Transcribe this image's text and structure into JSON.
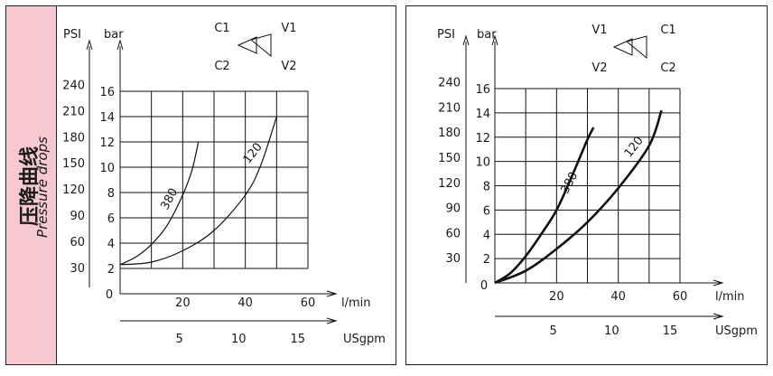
{
  "panel_label": {
    "zh": "压降曲线",
    "en": "Pressure drops"
  },
  "chart_data": [
    {
      "type": "line",
      "ylabel": "bar",
      "y2label": "PSI",
      "xlabel": "l/min",
      "x2label": "USgpm",
      "xlim": [
        0,
        60
      ],
      "ylim": [
        0,
        16
      ],
      "x_ticks": [
        "20",
        "40",
        "60"
      ],
      "x2_ticks": [
        "5",
        "10",
        "15"
      ],
      "y_ticks": [
        "2",
        "4",
        "6",
        "8",
        "10",
        "12",
        "14",
        "16"
      ],
      "y_ticks_origin": "0",
      "psi_ticks": [
        "30",
        "60",
        "90",
        "120",
        "150",
        "180",
        "210",
        "240"
      ],
      "flow_symbol": {
        "left": "C1",
        "right": "V1",
        "left2": "C2",
        "right2": "V2"
      },
      "series": [
        {
          "name": "380",
          "x": [
            0,
            5,
            10,
            15,
            20,
            23,
            25
          ],
          "y": [
            2.3,
            2.9,
            3.9,
            5.4,
            7.8,
            9.8,
            12
          ]
        },
        {
          "name": "120",
          "x": [
            0,
            10,
            20,
            30,
            40,
            45,
            50
          ],
          "y": [
            2.3,
            2.5,
            3.4,
            5.0,
            7.8,
            10.2,
            14
          ]
        }
      ]
    },
    {
      "type": "line",
      "ylabel": "bar",
      "y2label": "PSI",
      "xlabel": "l/min",
      "x2label": "USgpm",
      "xlim": [
        0,
        60
      ],
      "ylim": [
        0,
        16
      ],
      "x_ticks": [
        "20",
        "40",
        "60"
      ],
      "x2_ticks": [
        "5",
        "10",
        "15"
      ],
      "y_ticks": [
        "2",
        "4",
        "6",
        "8",
        "10",
        "12",
        "14",
        "16"
      ],
      "y_ticks_origin": "0",
      "psi_ticks": [
        "30",
        "60",
        "90",
        "120",
        "150",
        "180",
        "210",
        "240"
      ],
      "flow_symbol": {
        "left": "V1",
        "right": "C1",
        "left2": "V2",
        "right2": "C2"
      },
      "series": [
        {
          "name": "380",
          "x": [
            0,
            5,
            10,
            15,
            20,
            25,
            30,
            32
          ],
          "y": [
            0,
            0.8,
            2.2,
            4.0,
            6.0,
            8.8,
            11.8,
            12.8
          ]
        },
        {
          "name": "120",
          "x": [
            0,
            10,
            20,
            30,
            40,
            50,
            54
          ],
          "y": [
            0,
            1.0,
            2.8,
            5.0,
            7.8,
            11.3,
            14.2
          ]
        }
      ]
    }
  ]
}
